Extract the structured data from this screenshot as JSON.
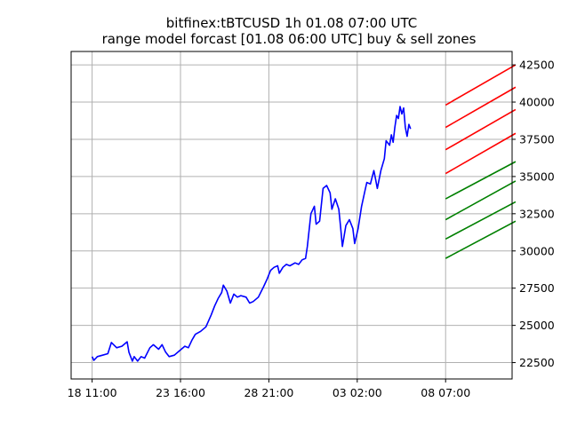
{
  "chart_data": {
    "type": "line",
    "title": "bitfinex:tBTCUSD 1h 01.08 07:00 UTC",
    "subtitle": "range model forcast [01.08 06:00 UTC] buy & sell zones",
    "xlabel": "",
    "ylabel": "",
    "x_axis": {
      "unit": "hours",
      "range": [
        -24,
        480
      ],
      "ticks": [
        {
          "x": 0,
          "label": "18 11:00"
        },
        {
          "x": 101,
          "label": "23 16:00"
        },
        {
          "x": 202,
          "label": "28 21:00"
        },
        {
          "x": 303,
          "label": "03 02:00"
        },
        {
          "x": 404,
          "label": "08 07:00"
        }
      ]
    },
    "y_axis": {
      "side": "right",
      "range": [
        21400,
        43400
      ],
      "ticks": [
        22500,
        25000,
        27500,
        30000,
        32500,
        35000,
        37500,
        40000,
        42500
      ],
      "tick_labels": [
        "22500",
        "25000",
        "27500",
        "30000",
        "32500",
        "35000",
        "37500",
        "40000",
        "42500"
      ]
    },
    "grid": true,
    "price_series": {
      "color": "#0000ff",
      "anchors": [
        [
          0,
          22900
        ],
        [
          2,
          22650
        ],
        [
          6,
          22900
        ],
        [
          12,
          23000
        ],
        [
          18,
          23100
        ],
        [
          22,
          23850
        ],
        [
          28,
          23500
        ],
        [
          34,
          23600
        ],
        [
          40,
          23900
        ],
        [
          42,
          23200
        ],
        [
          46,
          22600
        ],
        [
          48,
          22900
        ],
        [
          52,
          22600
        ],
        [
          56,
          22900
        ],
        [
          60,
          22800
        ],
        [
          66,
          23500
        ],
        [
          70,
          23700
        ],
        [
          76,
          23400
        ],
        [
          80,
          23700
        ],
        [
          84,
          23200
        ],
        [
          88,
          22900
        ],
        [
          94,
          23000
        ],
        [
          100,
          23300
        ],
        [
          106,
          23600
        ],
        [
          110,
          23500
        ],
        [
          114,
          24000
        ],
        [
          118,
          24400
        ],
        [
          124,
          24600
        ],
        [
          130,
          24900
        ],
        [
          136,
          25700
        ],
        [
          140,
          26300
        ],
        [
          144,
          26800
        ],
        [
          148,
          27200
        ],
        [
          150,
          27700
        ],
        [
          154,
          27300
        ],
        [
          158,
          26500
        ],
        [
          162,
          27100
        ],
        [
          166,
          26900
        ],
        [
          170,
          27000
        ],
        [
          176,
          26900
        ],
        [
          180,
          26500
        ],
        [
          184,
          26600
        ],
        [
          190,
          26900
        ],
        [
          196,
          27600
        ],
        [
          200,
          28100
        ],
        [
          204,
          28700
        ],
        [
          208,
          28900
        ],
        [
          212,
          29000
        ],
        [
          214,
          28500
        ],
        [
          218,
          28900
        ],
        [
          222,
          29100
        ],
        [
          226,
          29000
        ],
        [
          232,
          29200
        ],
        [
          236,
          29100
        ],
        [
          240,
          29400
        ],
        [
          244,
          29500
        ],
        [
          246,
          30300
        ],
        [
          250,
          32500
        ],
        [
          254,
          33000
        ],
        [
          256,
          31800
        ],
        [
          260,
          32000
        ],
        [
          264,
          34200
        ],
        [
          268,
          34400
        ],
        [
          272,
          33900
        ],
        [
          274,
          32800
        ],
        [
          278,
          33500
        ],
        [
          282,
          32800
        ],
        [
          284,
          31600
        ],
        [
          286,
          30300
        ],
        [
          290,
          31700
        ],
        [
          294,
          32100
        ],
        [
          298,
          31500
        ],
        [
          300,
          30500
        ],
        [
          304,
          31500
        ],
        [
          308,
          33000
        ],
        [
          312,
          34100
        ],
        [
          314,
          34600
        ],
        [
          318,
          34500
        ],
        [
          322,
          35400
        ],
        [
          324,
          34800
        ],
        [
          326,
          34200
        ],
        [
          330,
          35400
        ],
        [
          334,
          36200
        ],
        [
          336,
          37400
        ],
        [
          340,
          37100
        ],
        [
          342,
          37800
        ],
        [
          344,
          37300
        ],
        [
          346,
          38300
        ],
        [
          348,
          39100
        ],
        [
          350,
          38900
        ],
        [
          352,
          39700
        ],
        [
          354,
          39200
        ],
        [
          356,
          39600
        ],
        [
          358,
          38300
        ],
        [
          360,
          37700
        ],
        [
          362,
          38500
        ],
        [
          364,
          38200
        ]
      ]
    },
    "zones": {
      "x_start": 404,
      "x_end": 484,
      "sell": {
        "color": "#ff0000",
        "start_values": [
          39800,
          38300,
          36800,
          35200
        ],
        "end_values": [
          42500,
          41000,
          39500,
          37900
        ]
      },
      "buy": {
        "color": "#008000",
        "start_values": [
          33500,
          32100,
          30800,
          29500
        ],
        "end_values": [
          36000,
          34700,
          33300,
          32000
        ]
      }
    }
  }
}
